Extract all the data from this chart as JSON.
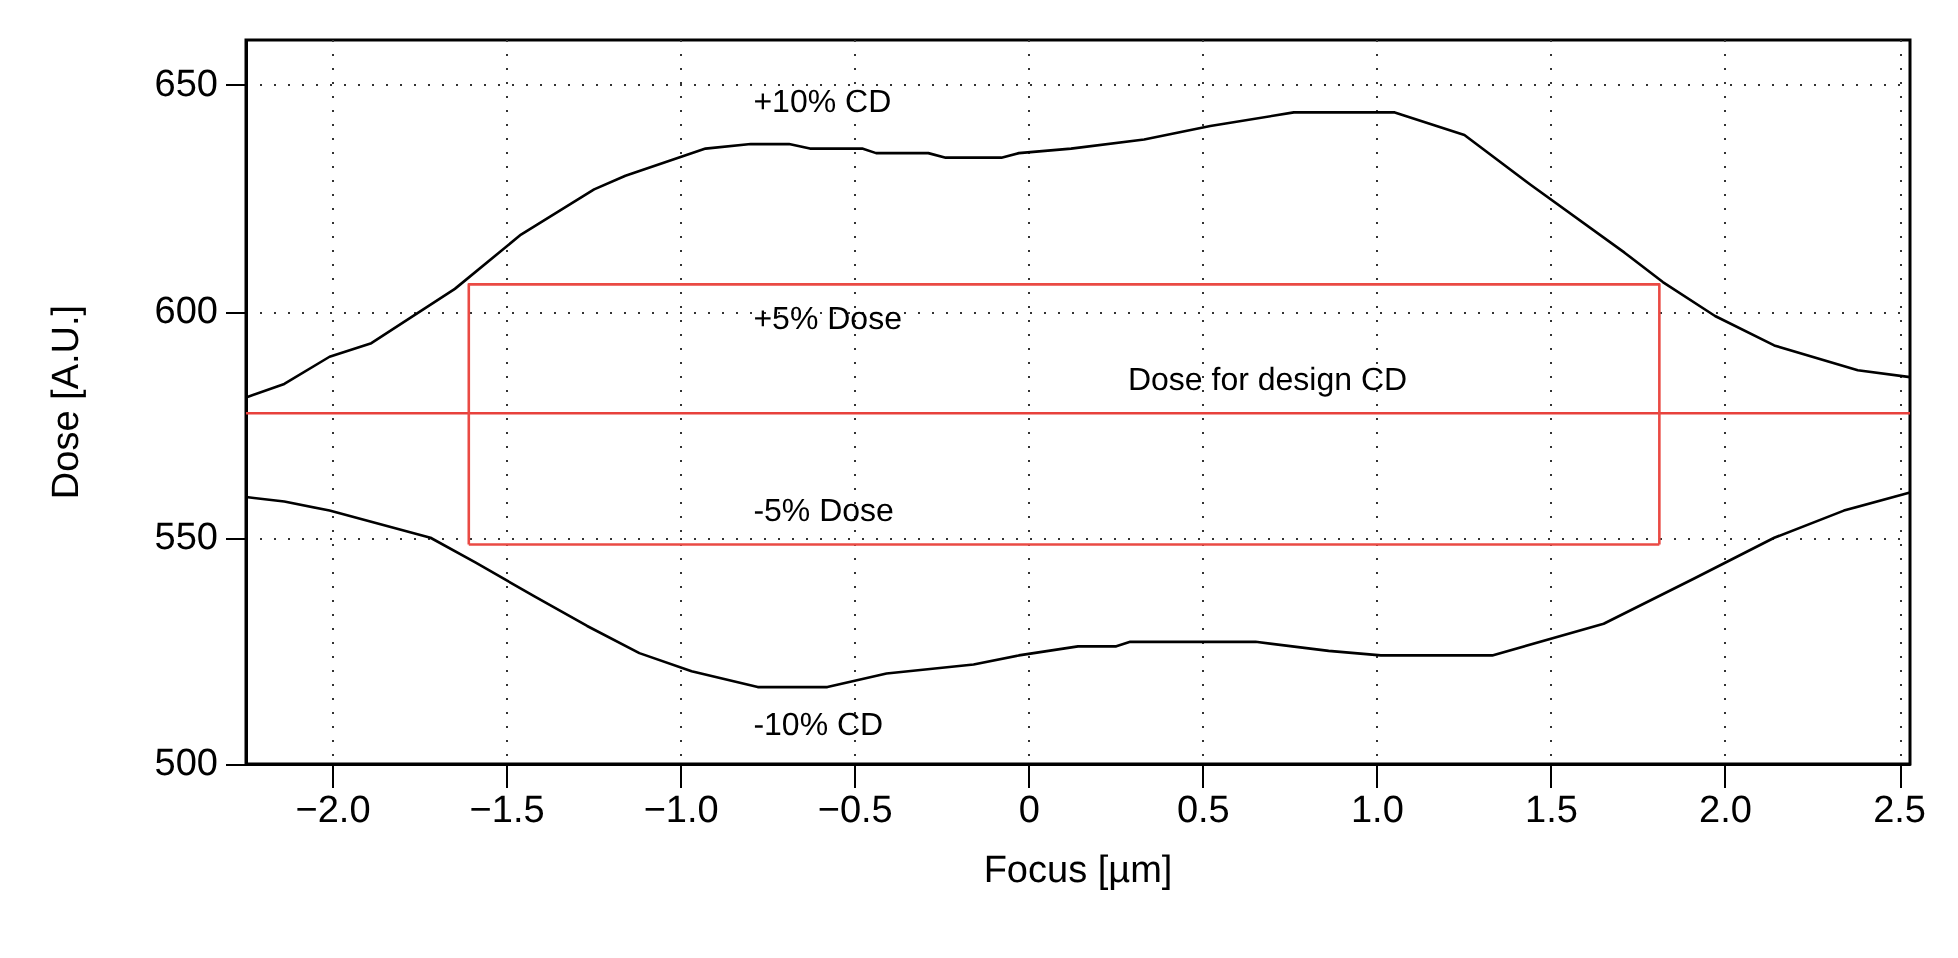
{
  "chart_data": {
    "type": "line",
    "xlabel": "Focus [µm]",
    "ylabel": "Dose [A.U.]",
    "xlim": [
      -2.25,
      2.53
    ],
    "ylim": [
      500,
      660
    ],
    "xticks": [
      {
        "value": -2,
        "label": "−2.0"
      },
      {
        "value": -1.5,
        "label": "−1.5"
      },
      {
        "value": -1,
        "label": "−1.0"
      },
      {
        "value": -0.5,
        "label": "−0.5"
      },
      {
        "value": 0,
        "label": "0"
      },
      {
        "value": 0.5,
        "label": "0.5"
      },
      {
        "value": 1,
        "label": "1.0"
      },
      {
        "value": 1.5,
        "label": "1.5"
      },
      {
        "value": 2,
        "label": "2.0"
      },
      {
        "value": 2.5,
        "label": "2.5"
      }
    ],
    "yticks": [
      500,
      550,
      600,
      650
    ],
    "grid": true,
    "marker": "none",
    "line_style": "solid",
    "series": [
      {
        "color": "#000000",
        "x": [
          -2.25,
          -2.14,
          -2.01,
          -1.89,
          -1.65,
          -1.46,
          -1.25,
          -1.16,
          -0.93,
          -0.8,
          -0.69,
          -0.63,
          -0.48,
          -0.44,
          -0.29,
          -0.24,
          -0.08,
          -0.03,
          0.12,
          0.33,
          0.52,
          0.76,
          1.05,
          1.25,
          1.44,
          1.71,
          1.82,
          1.97,
          2.14,
          2.38,
          2.53
        ],
        "values": [
          581,
          584,
          590,
          593,
          605,
          617,
          627,
          630,
          636,
          637,
          637,
          636,
          636,
          635,
          635,
          634,
          634,
          635,
          636,
          638,
          641,
          644,
          644,
          639,
          628,
          613,
          606.5,
          599,
          592.5,
          587,
          585.5
        ]
      },
      {
        "color": "#000000",
        "x": [
          -2.25,
          -2.14,
          -2.01,
          -1.72,
          -1.59,
          -1.42,
          -1.27,
          -1.12,
          -0.97,
          -0.78,
          -0.58,
          -0.41,
          -0.16,
          -0.03,
          0.14,
          0.25,
          0.29,
          0.65,
          0.86,
          1.01,
          1.33,
          1.65,
          1.91,
          2.14,
          2.34,
          2.53
        ],
        "values": [
          559,
          558,
          556,
          550,
          544.5,
          537,
          530.5,
          524.5,
          520.5,
          517,
          517,
          520,
          522,
          524,
          526,
          526,
          527,
          527,
          525,
          524,
          524,
          531,
          541,
          550,
          556,
          560
        ]
      },
      {
        "color": "#ea4a44",
        "x": [
          -1.61,
          -1.61,
          1.81,
          1.81
        ],
        "values": [
          548.5,
          606,
          606,
          548.5
        ]
      },
      {
        "color": "#ea4a44",
        "x": [
          -1.61,
          1.81
        ],
        "values": [
          548.5,
          548.5
        ]
      }
    ],
    "ref_lines": [
      {
        "axis": "y",
        "value": 577.5,
        "label": "Dose for design CD",
        "color": "#e8413c"
      }
    ],
    "annotations": [
      "+10% CD",
      "+5% Dose",
      "-5% Dose",
      "-10% CD"
    ]
  }
}
